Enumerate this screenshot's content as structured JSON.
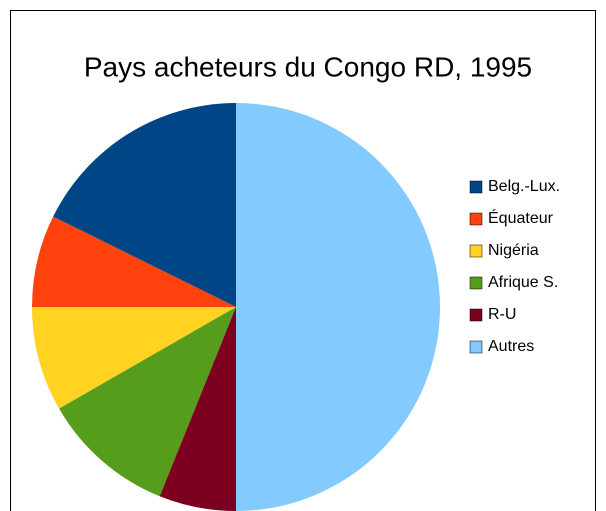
{
  "chart_data": {
    "type": "pie",
    "title": "Pays acheteurs du Congo RD, 1995",
    "categories": [
      "Belg.-Lux.",
      "Équateur",
      "Nigéria",
      "Afrique S.",
      "R-U",
      "Autres"
    ],
    "values": [
      17.7,
      7.3,
      8.3,
      10.6,
      6.1,
      50
    ],
    "colors": [
      "#004586",
      "#ff420e",
      "#ffd320",
      "#579d1c",
      "#7e0021",
      "#83caff"
    ],
    "legend": "right"
  }
}
